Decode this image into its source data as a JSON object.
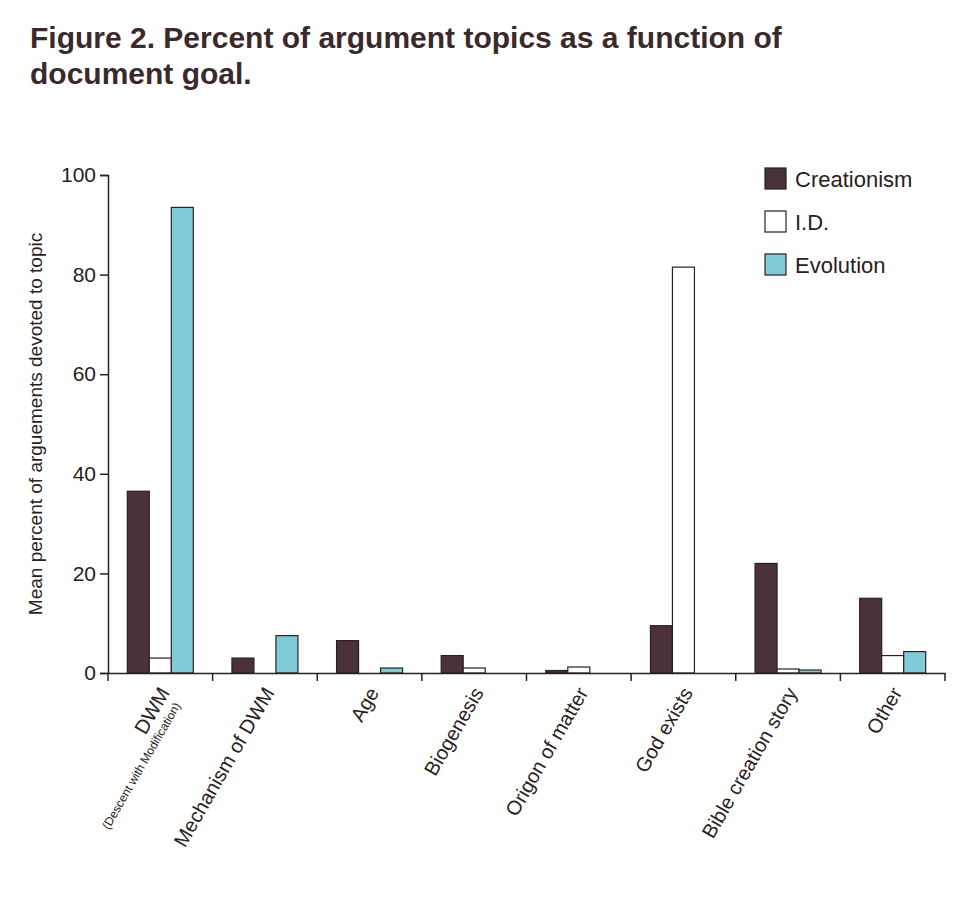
{
  "chart_data": {
    "type": "bar",
    "title": "Figure 2. Percent of argument topics as a function of\ndocument goal.",
    "y_label": "Mean percent of arguements devoted to topic",
    "categories": [
      "DWM\n(Descent with Modification)",
      "Mechanism of DWM",
      "Age",
      "Biogenesis",
      "Origon of matter",
      "God exists",
      "Bible creation story",
      "Other"
    ],
    "series": [
      {
        "name": "Creationism",
        "color": "#4b3139",
        "values": [
          36.5,
          3,
          6.5,
          3.5,
          0.5,
          9.5,
          22,
          15
        ]
      },
      {
        "name": "I.D.",
        "color": "#ffffff",
        "values": [
          3,
          0,
          0,
          1,
          1.2,
          81.5,
          0.8,
          3.5
        ]
      },
      {
        "name": "Evolution",
        "color": "#7fcbd7",
        "values": [
          93.5,
          7.5,
          1,
          0,
          0,
          0,
          0.6,
          4.3
        ]
      }
    ],
    "ylim": [
      0,
      100
    ],
    "yticks": [
      0,
      20,
      40,
      60,
      80,
      100
    ],
    "grid": false,
    "legend": "upper right"
  }
}
